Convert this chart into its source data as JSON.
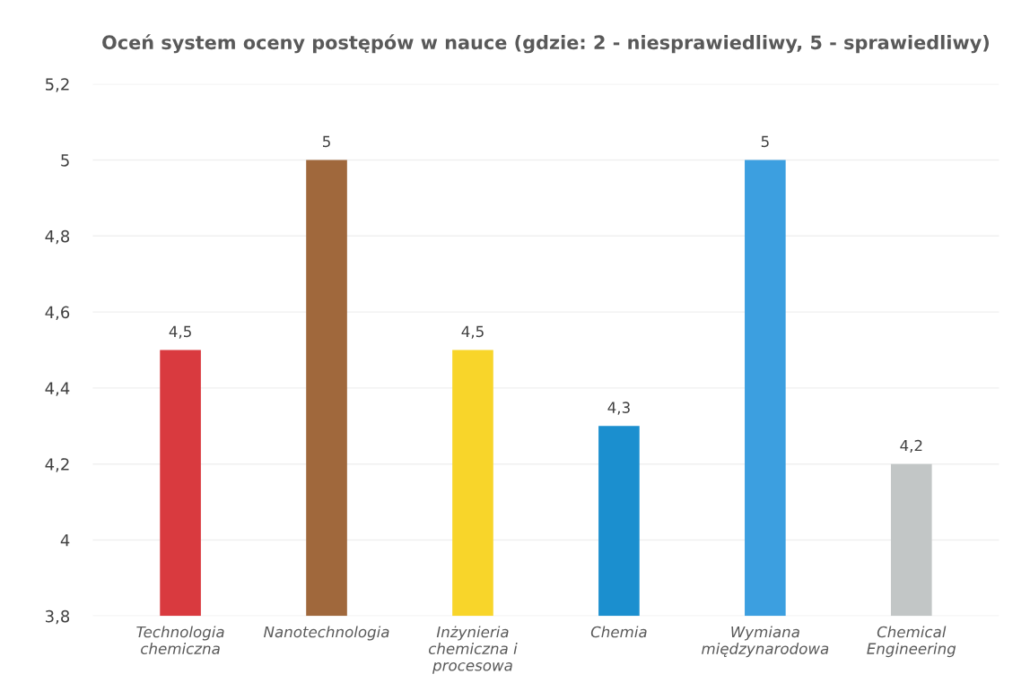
{
  "chart_data": {
    "type": "bar",
    "title": "Oceń system oceny postępów w nauce (gdzie: 2 - niesprawiedliwy, 5 - sprawiedliwy)",
    "categories": [
      "Technologia\nchemiczna",
      "Nanotechnologia",
      "Inżynieria\nchemiczna i\nprocesowa",
      "Chemia",
      "Wymiana\nmiędzynarodowa",
      "Chemical\nEngineering"
    ],
    "values": [
      4.5,
      5,
      4.5,
      4.3,
      5,
      4.2
    ],
    "colors": [
      "#d93a3f",
      "#a0683c",
      "#f8d52a",
      "#1b8fcf",
      "#3c9fe0",
      "#c2c6c6"
    ],
    "value_labels": [
      "4,5",
      "5",
      "4,5",
      "4,3",
      "5",
      "4,2"
    ],
    "ylim": [
      3.8,
      5.2
    ],
    "yticks": [
      {
        "value": 3.8,
        "label": "3,8"
      },
      4,
      {
        "value": 4.2,
        "label": "4,2"
      },
      {
        "value": 4.4,
        "label": "4,4"
      },
      {
        "value": 4.6,
        "label": "4,6"
      },
      {
        "value": 4.8,
        "label": "4,8"
      },
      5,
      {
        "value": 5.2,
        "label": "5,2"
      }
    ],
    "grid": "y"
  }
}
